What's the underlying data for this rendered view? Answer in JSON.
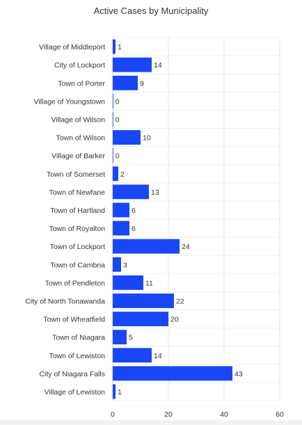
{
  "chart_data": {
    "type": "bar",
    "orientation": "horizontal",
    "title": "Active Cases by Municipality",
    "xlabel": "",
    "ylabel": "",
    "categories": [
      "Village of Middleport",
      "City of Lockport",
      "Town of Porter",
      "Village of Youngstown",
      "Village of Wilson",
      "Town of Wilson",
      "Village of Barker",
      "Town of Somerset",
      "Town of Newfane",
      "Town of Hartland",
      "Town of Royalton",
      "Town of Lockport",
      "Town of Cambria",
      "Town of Pendleton",
      "City of North Tonawanda",
      "Town of Wheatfield",
      "Town of Niagara",
      "Town of Lewiston",
      "City of Niagara Falls",
      "Village of Lewiston"
    ],
    "values": [
      1,
      14,
      9,
      0,
      0,
      10,
      0,
      2,
      13,
      6,
      6,
      24,
      3,
      11,
      22,
      20,
      5,
      14,
      43,
      1
    ],
    "xlim": [
      0,
      60
    ],
    "xticks": [
      0,
      20,
      40,
      60
    ],
    "grid": true,
    "data_labels": true,
    "bar_color": "#1a47f5"
  }
}
